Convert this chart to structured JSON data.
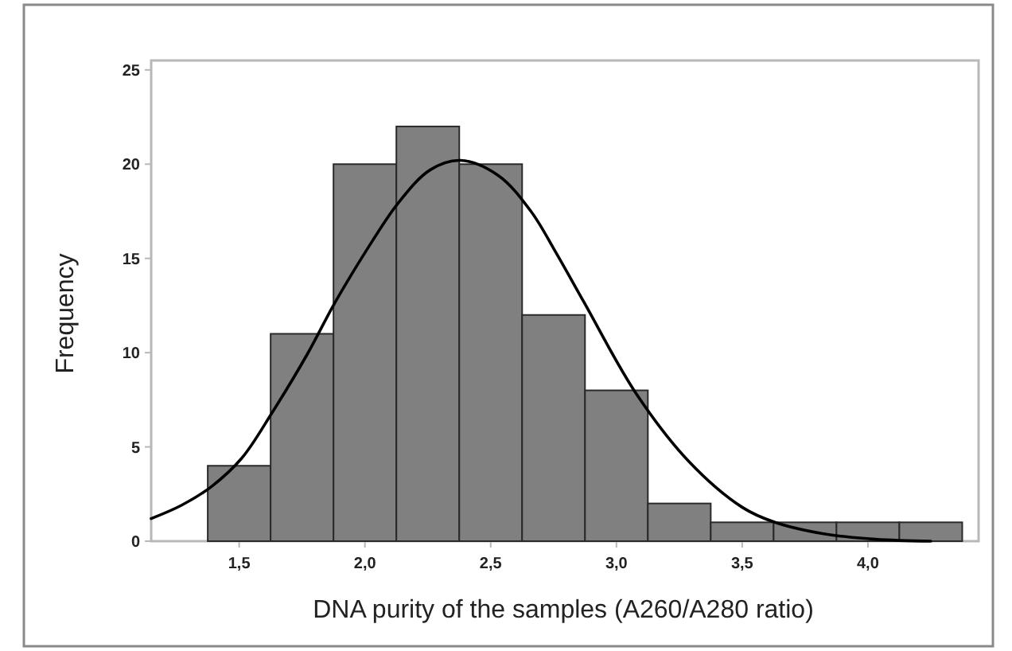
{
  "chart_data": {
    "type": "histogram",
    "xlabel": "DNA purity of the samples (A260/A280 ratio)",
    "ylabel": "Frequency",
    "bins": [
      1.375,
      1.625,
      1.875,
      2.125,
      2.375,
      2.625,
      2.875,
      3.125,
      3.375,
      3.625,
      3.875,
      4.125,
      4.375
    ],
    "values": [
      4,
      11,
      20,
      22,
      20,
      12,
      8,
      2,
      1,
      1,
      1,
      1
    ],
    "color": "#808080",
    "xlim": [
      1.15,
      4.44
    ],
    "ylim": [
      0,
      25.5
    ],
    "xticks": [
      {
        "value": 1.5,
        "label": "1,5"
      },
      {
        "value": 2,
        "label": "2,0"
      },
      {
        "value": 2.5,
        "label": "2,5"
      },
      {
        "value": 3,
        "label": "3,0"
      },
      {
        "value": 3.5,
        "label": "3,5"
      },
      {
        "value": 4,
        "label": "4,0"
      }
    ],
    "yticks": [
      0,
      5,
      10,
      15,
      20,
      25
    ],
    "series": [
      {
        "type": "line",
        "color": "#000000",
        "x": [
          1.15,
          1.27,
          1.39,
          1.51,
          1.63,
          1.77,
          1.87,
          1.94,
          2.0,
          2.13,
          2.26,
          2.38,
          2.53,
          2.66,
          2.76,
          2.87,
          3.08,
          3.29,
          3.5,
          3.63,
          3.82,
          4.03,
          4.25
        ],
        "values": [
          1.2,
          1.9,
          2.9,
          4.4,
          6.8,
          9.9,
          12.4,
          14.0,
          15.3,
          17.9,
          19.7,
          20.2,
          19.4,
          17.5,
          15.3,
          12.7,
          7.8,
          4.2,
          1.8,
          1.0,
          0.4,
          0.1,
          0
        ]
      }
    ]
  }
}
